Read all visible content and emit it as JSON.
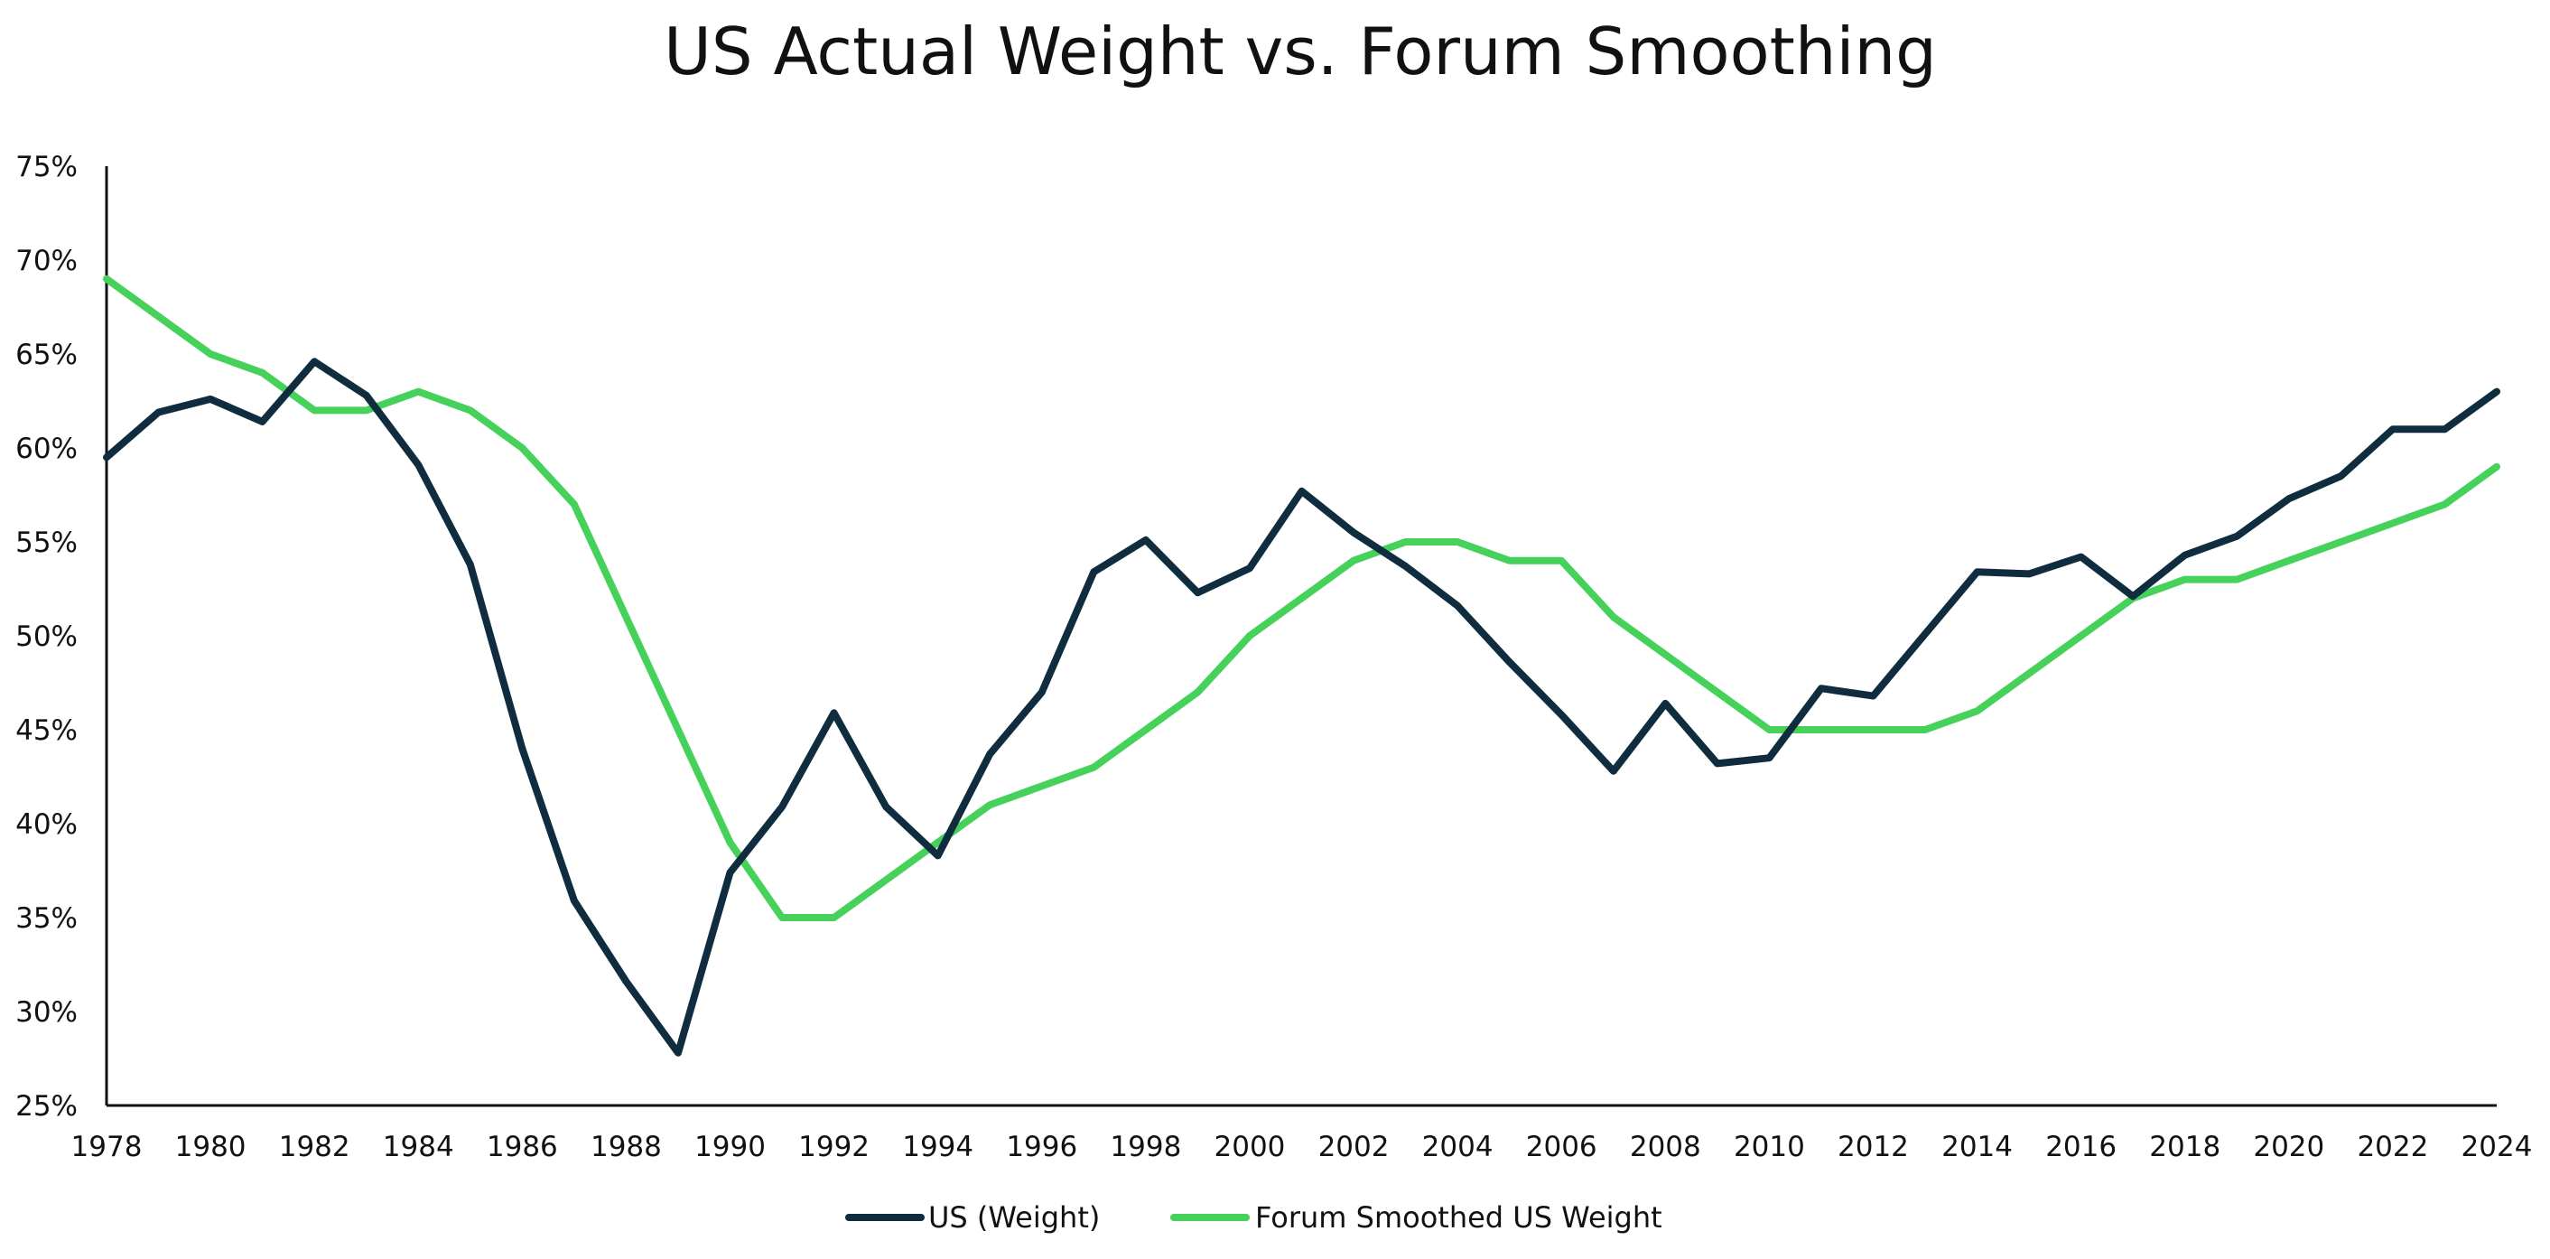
{
  "chart_data": {
    "type": "line",
    "title": "US Actual Weight vs. Forum Smoothing",
    "xlabel": "",
    "ylabel": "",
    "x": [
      1978,
      1979,
      1980,
      1981,
      1982,
      1983,
      1984,
      1985,
      1986,
      1987,
      1988,
      1989,
      1990,
      1991,
      1992,
      1993,
      1994,
      1995,
      1996,
      1997,
      1998,
      1999,
      2000,
      2001,
      2002,
      2003,
      2004,
      2005,
      2006,
      2007,
      2008,
      2009,
      2010,
      2011,
      2012,
      2013,
      2014,
      2015,
      2016,
      2017,
      2018,
      2019,
      2020,
      2021,
      2022,
      2023,
      2024
    ],
    "xticks": [
      "1978",
      "1980",
      "1982",
      "1984",
      "1986",
      "1988",
      "1990",
      "1992",
      "1994",
      "1996",
      "1998",
      "2000",
      "2002",
      "2004",
      "2006",
      "2008",
      "2010",
      "2012",
      "2014",
      "2016",
      "2018",
      "2020",
      "2022",
      "2024"
    ],
    "ylim": [
      25,
      75
    ],
    "yticks": [
      25,
      30,
      35,
      40,
      45,
      50,
      55,
      60,
      65,
      70,
      75
    ],
    "ytick_labels": [
      "25%",
      "30%",
      "35%",
      "40%",
      "45%",
      "50%",
      "55%",
      "60%",
      "65%",
      "70%",
      "75%"
    ],
    "legend_position": "bottom-center",
    "grid": false,
    "series": [
      {
        "name": "US (Weight)",
        "color": "#0f2d3f",
        "values": [
          59.5,
          61.9,
          62.6,
          61.4,
          64.6,
          62.8,
          59.1,
          53.8,
          44.0,
          35.9,
          31.6,
          27.8,
          37.4,
          40.9,
          45.9,
          40.9,
          38.3,
          43.7,
          47.0,
          53.4,
          55.1,
          52.3,
          53.6,
          57.7,
          55.5,
          53.7,
          51.6,
          48.6,
          45.8,
          42.8,
          46.4,
          43.2,
          43.5,
          47.2,
          46.8,
          50.1,
          53.4,
          53.3,
          54.2,
          52.1,
          54.3,
          55.3,
          57.3,
          58.5,
          61.0,
          61.0,
          63.0
        ]
      },
      {
        "name": "Forum Smoothed US Weight",
        "color": "#45d15a",
        "values": [
          69,
          67,
          65,
          64,
          62,
          62,
          63,
          62,
          60,
          57,
          51,
          45,
          39,
          35,
          35,
          37,
          39,
          41,
          42,
          43,
          45,
          47,
          50,
          52,
          54,
          55,
          55,
          54,
          54,
          51,
          49,
          47,
          45,
          45,
          45,
          45,
          46,
          48,
          50,
          52,
          53,
          53,
          54,
          55,
          56,
          57,
          59
        ]
      }
    ]
  }
}
